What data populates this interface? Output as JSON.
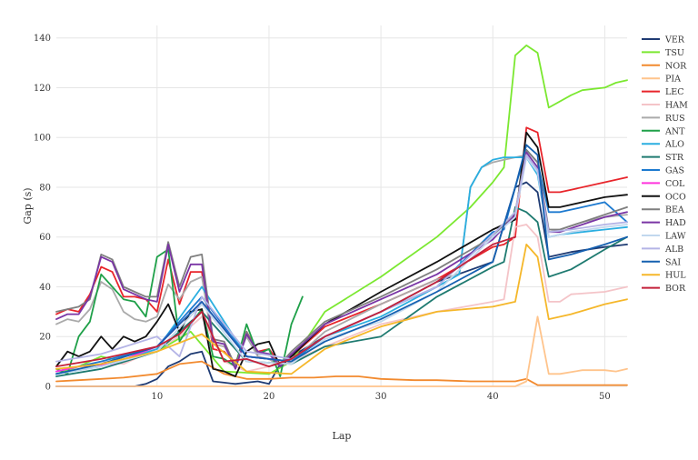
{
  "chart_data": {
    "type": "line",
    "title": "",
    "xlabel": "Lap",
    "ylabel": "Gap (s)",
    "xlim": [
      1,
      52
    ],
    "ylim": [
      0,
      145
    ],
    "x_ticks": [
      10,
      20,
      30,
      40,
      50
    ],
    "y_ticks": [
      0,
      20,
      40,
      60,
      80,
      100,
      120,
      140
    ],
    "grid": true,
    "legend_position": "right",
    "series": [
      {
        "name": "VER",
        "color": "#1f3b73",
        "x": [
          1,
          2,
          3,
          4,
          5,
          6,
          7,
          8,
          9,
          10,
          11,
          12,
          13,
          14,
          15,
          16,
          17,
          18,
          19,
          20,
          21,
          22,
          25,
          30,
          35,
          40,
          42,
          43,
          44,
          45,
          47,
          50,
          52
        ],
        "y": [
          0,
          0,
          0,
          0,
          0,
          0,
          0,
          0,
          1,
          3,
          8,
          10,
          13,
          14,
          2,
          1.5,
          1,
          1.5,
          2,
          1,
          9,
          12,
          20,
          30,
          42,
          50,
          80,
          82,
          78,
          52,
          54,
          56,
          57
        ]
      },
      {
        "name": "TSU",
        "color": "#7be830",
        "x": [
          1,
          3,
          5,
          7,
          10,
          13,
          16,
          20,
          22,
          25,
          30,
          35,
          38,
          40,
          41,
          42,
          43,
          44,
          45,
          47,
          48,
          50,
          51,
          52
        ],
        "y": [
          5,
          8,
          12,
          10,
          14,
          22,
          6,
          5,
          10,
          30,
          44,
          60,
          72,
          82,
          88,
          133,
          137,
          134,
          112,
          117,
          119,
          120,
          122,
          123
        ]
      },
      {
        "name": "NOR",
        "color": "#f28a2e",
        "x": [
          1,
          3,
          5,
          7,
          10,
          12,
          14,
          16,
          18,
          20,
          22,
          24,
          26,
          28,
          30,
          33,
          35,
          38,
          40,
          42,
          43,
          44,
          46,
          48,
          50,
          52
        ],
        "y": [
          2,
          2.5,
          3,
          3.5,
          5,
          9,
          10,
          5,
          3,
          3,
          3.5,
          3.5,
          4,
          4,
          3,
          2.5,
          2.5,
          2,
          2,
          2,
          3,
          0.5,
          0.5,
          0.5,
          0.5,
          0.5
        ]
      },
      {
        "name": "PIA",
        "color": "#ffc48c",
        "x": [
          1,
          10,
          20,
          30,
          40,
          42,
          43,
          44,
          45,
          46,
          48,
          50,
          51,
          52
        ],
        "y": [
          0,
          0,
          0,
          0,
          0,
          0,
          2,
          28,
          5,
          5,
          6.5,
          6.5,
          6,
          7
        ]
      },
      {
        "name": "LEC",
        "color": "#e8252b",
        "x": [
          1,
          2,
          3,
          4,
          5,
          6,
          7,
          8,
          9,
          10,
          11,
          12,
          13,
          14,
          15,
          16,
          17,
          18,
          19,
          20,
          21,
          22,
          25,
          30,
          35,
          40,
          41,
          42,
          43,
          44,
          45,
          46,
          47,
          50,
          52
        ],
        "y": [
          29,
          31,
          30,
          37,
          48,
          46,
          36,
          36,
          35,
          30,
          51,
          33,
          46,
          46,
          15,
          14,
          9,
          22,
          14,
          15,
          9,
          12,
          24,
          33,
          43,
          56,
          57,
          60,
          104,
          102,
          78,
          78,
          79,
          82,
          84
        ]
      },
      {
        "name": "HAM",
        "color": "#f4c4c8",
        "x": [
          1,
          3,
          5,
          7,
          10,
          12,
          14,
          16,
          18,
          20,
          22,
          25,
          30,
          35,
          40,
          41,
          42,
          43,
          44,
          45,
          46,
          47,
          50,
          52
        ],
        "y": [
          6,
          8,
          10,
          9,
          15,
          20,
          28,
          10,
          6,
          8,
          10,
          16,
          25,
          30,
          34,
          35,
          64,
          65,
          60,
          34,
          34,
          37,
          38,
          40
        ]
      },
      {
        "name": "RUS",
        "color": "#aaaaaa",
        "x": [
          1,
          2,
          3,
          4,
          5,
          6,
          7,
          8,
          9,
          10,
          11,
          12,
          13,
          14,
          15,
          16,
          17,
          18,
          19,
          20,
          21,
          22,
          25,
          30,
          35,
          37,
          38,
          39,
          40,
          41,
          42,
          43,
          44,
          45,
          46,
          48,
          50,
          52
        ],
        "y": [
          25,
          27,
          26,
          31,
          42,
          39,
          30,
          27,
          26,
          28,
          41,
          35,
          42,
          44,
          17,
          16,
          9,
          20,
          12,
          11,
          8,
          10,
          22,
          33,
          43,
          45,
          80,
          88,
          90,
          91,
          92,
          93,
          88,
          62,
          63,
          66,
          68,
          69
        ]
      },
      {
        "name": "ANT",
        "color": "#1fa049",
        "x": [
          1,
          2,
          3,
          4,
          5,
          6,
          7,
          8,
          9,
          10,
          11,
          12,
          13,
          14,
          15,
          16,
          17,
          18,
          19,
          20,
          21,
          22,
          23
        ],
        "y": [
          7,
          5,
          20,
          26,
          45,
          40,
          35,
          34,
          28,
          52,
          55,
          18,
          25,
          31,
          12,
          11,
          8,
          25,
          13,
          15,
          4,
          25,
          36
        ]
      },
      {
        "name": "ALO",
        "color": "#2aaee0",
        "x": [
          1,
          5,
          10,
          14,
          18,
          22,
          25,
          30,
          35,
          37,
          38,
          39,
          40,
          41,
          42,
          43,
          44,
          45,
          46,
          48,
          50,
          52
        ],
        "y": [
          5,
          8,
          15,
          40,
          12,
          10,
          20,
          28,
          40,
          45,
          80,
          88,
          91,
          92,
          92,
          92,
          85,
          60,
          61,
          62,
          63,
          64
        ]
      },
      {
        "name": "STR",
        "color": "#1e7a70",
        "x": [
          1,
          5,
          10,
          14,
          18,
          22,
          25,
          30,
          35,
          40,
          41,
          42,
          43,
          44,
          45,
          47,
          50,
          52
        ],
        "y": [
          4,
          7,
          14,
          30,
          10,
          9,
          16,
          20,
          36,
          48,
          50,
          72,
          70,
          66,
          44,
          47,
          55,
          60
        ]
      },
      {
        "name": "GAS",
        "color": "#1d7ad0",
        "x": [
          1,
          5,
          10,
          14,
          18,
          22,
          25,
          30,
          35,
          40,
          41,
          42,
          43,
          44,
          45,
          46,
          48,
          50,
          52
        ],
        "y": [
          6,
          10,
          16,
          36,
          12,
          10,
          20,
          30,
          40,
          62,
          63,
          80,
          95,
          90,
          70,
          70,
          72,
          74,
          66
        ]
      },
      {
        "name": "COL",
        "color": "#ff33dd",
        "x": [
          1,
          3,
          6,
          10,
          14,
          18,
          22
        ],
        "y": [
          6,
          8,
          9,
          16,
          34,
          12,
          10
        ]
      },
      {
        "name": "OCO",
        "color": "#111111",
        "x": [
          1,
          2,
          3,
          4,
          5,
          6,
          7,
          8,
          9,
          10,
          11,
          12,
          13,
          14,
          15,
          16,
          17,
          18,
          19,
          20,
          21,
          22,
          25,
          30,
          35,
          40,
          41,
          42,
          43,
          44,
          45,
          46,
          48,
          50,
          52
        ],
        "y": [
          8,
          14,
          12,
          14,
          20,
          15,
          20,
          18,
          20,
          26,
          33,
          22,
          30,
          31,
          7,
          6,
          4,
          14,
          17,
          18,
          8,
          12,
          25,
          38,
          50,
          63,
          65,
          67,
          102,
          96,
          72,
          72,
          74,
          76,
          77
        ]
      },
      {
        "name": "BEA",
        "color": "#7f7f7f",
        "x": [
          1,
          2,
          3,
          4,
          5,
          6,
          7,
          8,
          9,
          10,
          11,
          12,
          13,
          14,
          15,
          16,
          17,
          18,
          19,
          20,
          21,
          22,
          25,
          30,
          35,
          40,
          42,
          43,
          44,
          45,
          46,
          48,
          50,
          52
        ],
        "y": [
          30,
          31,
          32,
          35,
          53,
          51,
          40,
          38,
          36,
          36,
          58,
          40,
          52,
          53,
          19,
          18,
          8,
          22,
          13,
          13,
          9,
          14,
          26,
          36,
          47,
          60,
          70,
          95,
          90,
          63,
          63,
          66,
          69,
          72
        ]
      },
      {
        "name": "HAD",
        "color": "#7a35a5",
        "x": [
          1,
          2,
          3,
          4,
          5,
          6,
          7,
          8,
          9,
          10,
          11,
          12,
          13,
          14,
          15,
          16,
          17,
          18,
          19,
          20,
          21,
          22,
          25,
          30,
          35,
          40,
          42,
          43,
          44,
          45,
          46,
          48,
          50,
          52
        ],
        "y": [
          27,
          29,
          29,
          36,
          52,
          50,
          39,
          37,
          35,
          34,
          57,
          38,
          49,
          49,
          18,
          17,
          7,
          21,
          14,
          13,
          8,
          13,
          25,
          35,
          45,
          59,
          69,
          94,
          88,
          62,
          62,
          65,
          68,
          70
        ]
      },
      {
        "name": "LAW",
        "color": "#c2d8ee",
        "x": [
          1,
          5,
          10,
          14,
          18,
          22,
          25,
          30,
          35,
          40,
          42,
          43,
          44,
          45,
          47,
          50,
          52
        ],
        "y": [
          5,
          8,
          14,
          33,
          10,
          9,
          19,
          26,
          38,
          60,
          68,
          92,
          86,
          60,
          62,
          64,
          65
        ]
      },
      {
        "name": "ALB",
        "color": "#b4b4e6",
        "x": [
          1,
          5,
          10,
          12,
          14,
          18,
          22,
          25,
          30,
          35,
          40,
          42,
          43,
          44,
          45,
          47,
          50,
          52
        ],
        "y": [
          10,
          13,
          20,
          12,
          36,
          14,
          11,
          20,
          30,
          40,
          61,
          70,
          93,
          87,
          62,
          63,
          65,
          66
        ]
      },
      {
        "name": "SAI",
        "color": "#1560b0",
        "x": [
          1,
          5,
          10,
          14,
          18,
          22,
          25,
          30,
          35,
          40,
          42,
          43,
          44,
          45,
          47,
          50,
          52
        ],
        "y": [
          5,
          9,
          16,
          34,
          12,
          10,
          18,
          27,
          38,
          50,
          80,
          97,
          93,
          51,
          53,
          57,
          60
        ]
      },
      {
        "name": "HUL",
        "color": "#f5b72a",
        "x": [
          1,
          5,
          10,
          14,
          18,
          22,
          25,
          30,
          35,
          40,
          42,
          43,
          44,
          45,
          47,
          50,
          52
        ],
        "y": [
          7,
          9,
          14,
          21,
          6,
          5,
          15,
          24,
          30,
          32,
          34,
          57,
          52,
          27,
          29,
          33,
          35
        ]
      },
      {
        "name": "BOR",
        "color": "#c4213a",
        "x": [
          1,
          5,
          10,
          12,
          14,
          16,
          18,
          20,
          22,
          25,
          30,
          35,
          40,
          42
        ],
        "y": [
          8,
          11,
          16,
          21,
          30,
          10,
          11,
          8,
          11,
          20,
          30,
          42,
          57,
          60
        ]
      }
    ]
  }
}
